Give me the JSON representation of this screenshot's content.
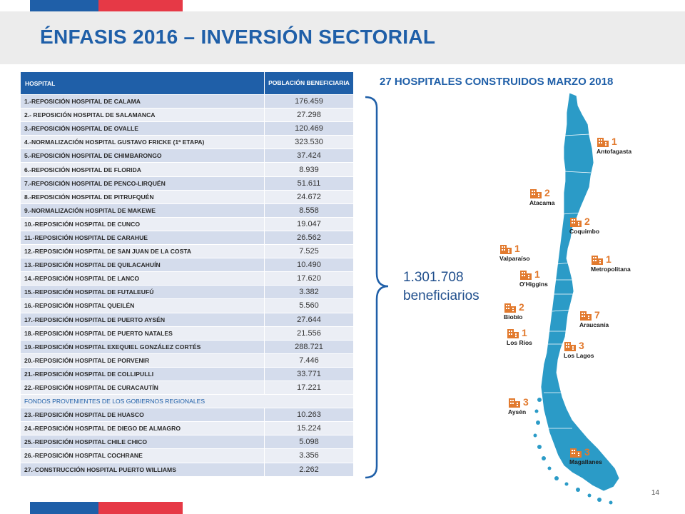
{
  "header": {
    "title": "ÉNFASIS 2016 – INVERSIÓN SECTORIAL"
  },
  "table": {
    "header_hospital": "HOSPITAL",
    "header_population": "POBLACIÓN BENEFICIARIA",
    "rows": [
      {
        "name": "1.-REPOSICIÓN HOSPITAL DE CALAMA",
        "value": "176.459"
      },
      {
        "name": "2.- REPOSICIÓN HOSPITAL DE SALAMANCA",
        "value": "27.298"
      },
      {
        "name": "3.-REPOSICIÓN HOSPITAL DE OVALLE",
        "value": "120.469"
      },
      {
        "name": "4.-NORMALIZACIÓN HOSPITAL GUSTAVO FRICKE (1ª ETAPA)",
        "value": "323.530"
      },
      {
        "name": "5.-REPOSICIÓN HOSPITAL DE CHIMBARONGO",
        "value": "37.424"
      },
      {
        "name": "6.-REPOSICIÓN HOSPITAL DE FLORIDA",
        "value": "8.939"
      },
      {
        "name": "7.-REPOSICIÓN HOSPITAL DE PENCO-LIRQUÉN",
        "value": "51.611"
      },
      {
        "name": "8.-REPOSICIÓN HOSPITAL DE PITRUFQUÉN",
        "value": "24.672"
      },
      {
        "name": "9.-NORMALIZACIÓN HOSPITAL DE MAKEWE",
        "value": "8.558"
      },
      {
        "name": "10.-REPOSICIÓN HOSPITAL DE CUNCO",
        "value": "19.047"
      },
      {
        "name": "11.-REPOSICIÓN HOSPITAL DE CARAHUE",
        "value": "26.562"
      },
      {
        "name": "12.-REPOSICIÓN HOSPITAL DE SAN JUAN DE LA COSTA",
        "value": "7.525"
      },
      {
        "name": "13.-REPOSICIÓN HOSPITAL DE QUILACAHUÍN",
        "value": "10.490"
      },
      {
        "name": "14.-REPOSICIÓN HOSPITAL DE LANCO",
        "value": "17.620"
      },
      {
        "name": "15.-REPOSICIÓN HOSPITAL DE FUTALEUFÚ",
        "value": "3.382"
      },
      {
        "name": "16.-REPOSICIÓN  HOSPITAL QUEILÉN",
        "value": "5.560"
      },
      {
        "name": "17.-REPOSICIÓN HOSPITAL DE PUERTO AYSÉN",
        "value": "27.644"
      },
      {
        "name": "18.-REPOSICIÓN HOSPITAL DE PUERTO NATALES",
        "value": "21.556"
      },
      {
        "name": "19.-REPOSICIÓN HOSPITAL EXEQUIEL GONZÁLEZ CORTÉS",
        "value": "288.721"
      },
      {
        "name": "20.-REPOSICIÓN HOSPITAL DE PORVENIR",
        "value": "7.446"
      },
      {
        "name": "21.-REPOSICIÓN HOSPITAL DE COLLIPULLI",
        "value": "33.771"
      },
      {
        "name": "22.-REPOSICIÓN HOSPITAL DE CURACAUTÍN",
        "value": "17.221"
      }
    ],
    "section_label": "FONDOS PROVENIENTES  DE LOS GOBIERNOS  REGIONALES",
    "rows_regional": [
      {
        "name": "23.-REPOSICIÓN HOSPITAL DE HUASCO",
        "value": "10.263"
      },
      {
        "name": "24.-REPOSICIÓN HOSPITAL DE DIEGO DE ALMAGRO",
        "value": "15.224"
      },
      {
        "name": "25.-REPOSICIÓN HOSPITAL CHILE CHICO",
        "value": "5.098"
      },
      {
        "name": "26.-REPOSICIÓN HOSPITAL COCHRANE",
        "value": "3.356"
      },
      {
        "name": "27.-CONSTRUCCIÓN HOSPITAL PUERTO WILLIAMS",
        "value": "2.262"
      }
    ]
  },
  "summary": {
    "total": "1.301.708",
    "total_label": "beneficiarios"
  },
  "map": {
    "title": "27 HOSPITALES CONSTRUIDOS MARZO 2018",
    "map_color": "#2b9bc7",
    "icon_color": "#e27a2e",
    "regions": [
      {
        "name": "Antofagasta",
        "count": "1",
        "icon": "hospital-building-icon"
      },
      {
        "name": "Atacama",
        "count": "2",
        "icon": "hospital-building-icon"
      },
      {
        "name": "Coquimbo",
        "count": "2",
        "icon": "hospital-building-icon"
      },
      {
        "name": "Valparaíso",
        "count": "1",
        "icon": "hospital-building-icon"
      },
      {
        "name": "Metropolitana",
        "count": "1",
        "icon": "hospital-building-icon"
      },
      {
        "name": "O'Higgins",
        "count": "1",
        "icon": "hospital-building-icon"
      },
      {
        "name": "Biobío",
        "count": "2",
        "icon": "hospital-building-icon"
      },
      {
        "name": "Araucanía",
        "count": "7",
        "icon": "hospital-building-icon"
      },
      {
        "name": "Los Ríos",
        "count": "1",
        "icon": "hospital-building-icon"
      },
      {
        "name": "Los Lagos",
        "count": "3",
        "icon": "hospital-building-icon"
      },
      {
        "name": "Aysén",
        "count": "3",
        "icon": "hospital-building-icon"
      },
      {
        "name": "Magallanes",
        "count": "3",
        "icon": "hospital-building-icon"
      }
    ]
  },
  "footer": {
    "page_number": "14"
  },
  "colors": {
    "brand_blue": "#1f5fa8",
    "brand_red": "#e63946"
  }
}
